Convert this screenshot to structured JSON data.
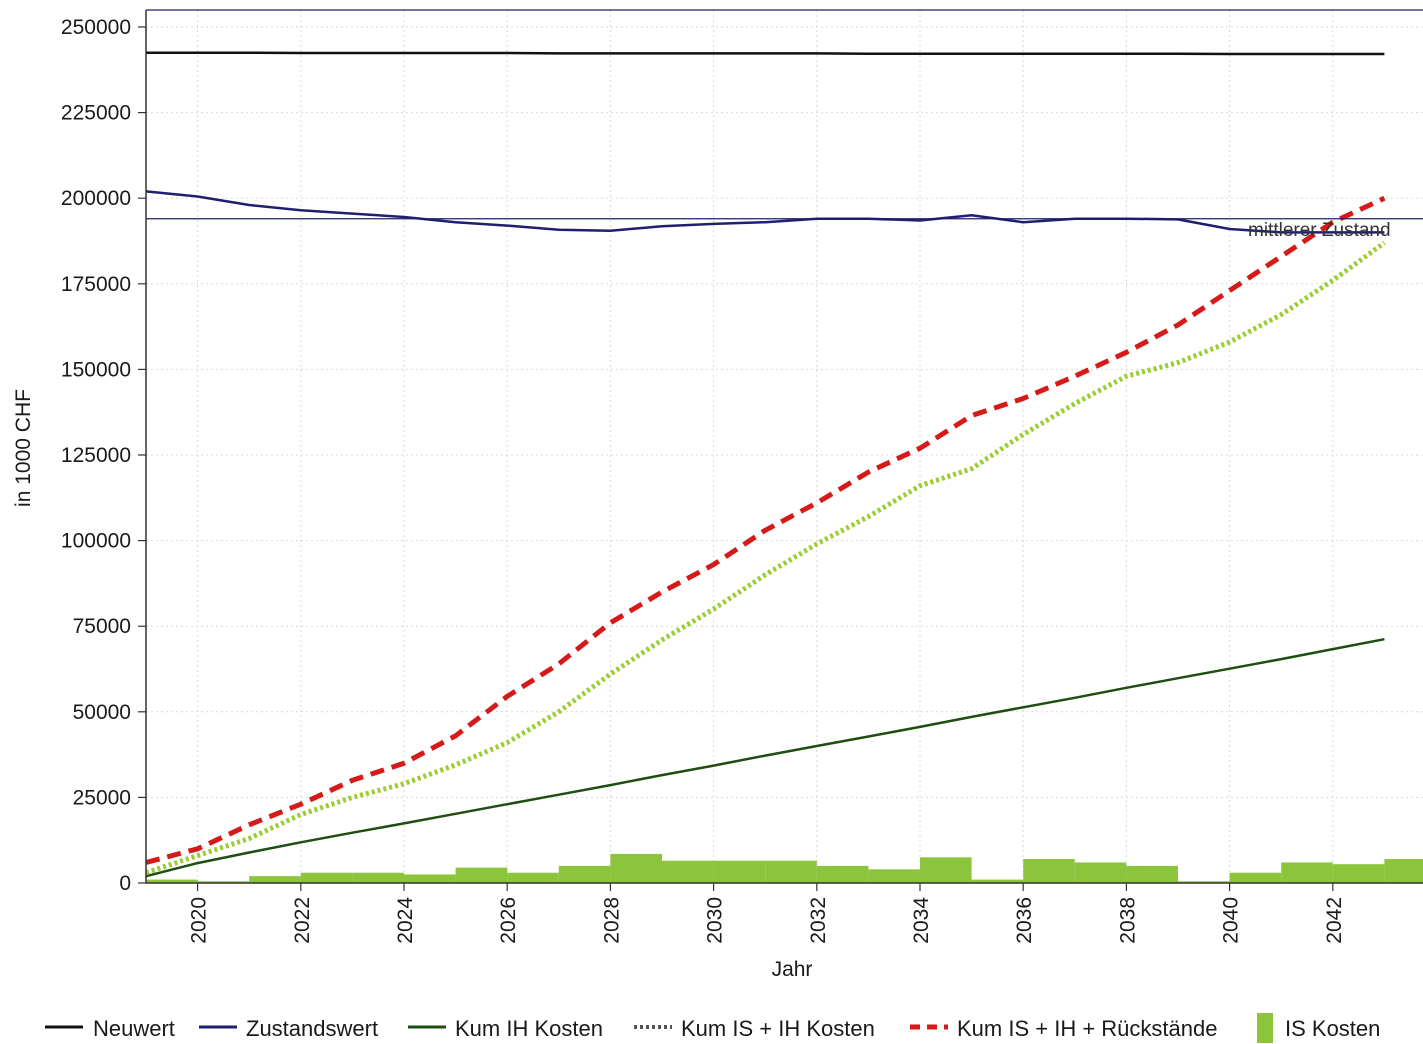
{
  "chart_data": {
    "type": "line",
    "title": "",
    "xlabel": "Jahr",
    "ylabel": "in 1000 CHF",
    "x_ticks": [
      "2020",
      "2022",
      "2024",
      "2026",
      "2028",
      "2030",
      "2032",
      "2034",
      "2036",
      "2038",
      "2040",
      "2042"
    ],
    "y_ticks": [
      "0",
      "25000",
      "50000",
      "75000",
      "100000",
      "125000",
      "150000",
      "175000",
      "200000",
      "225000",
      "250000"
    ],
    "xlim": [
      2019,
      2043.7
    ],
    "ylim": [
      0,
      255000
    ],
    "grid": true,
    "legend_position": "bottom",
    "x": [
      2019,
      2020,
      2021,
      2022,
      2023,
      2024,
      2025,
      2026,
      2027,
      2028,
      2029,
      2030,
      2031,
      2032,
      2033,
      2034,
      2035,
      2036,
      2037,
      2038,
      2039,
      2040,
      2041,
      2042,
      2043
    ],
    "series": [
      {
        "name": "Neuwert",
        "style": "solid",
        "color": "#111111",
        "values": [
          242500,
          242500,
          242500,
          242400,
          242400,
          242400,
          242400,
          242400,
          242300,
          242300,
          242300,
          242300,
          242300,
          242300,
          242200,
          242200,
          242200,
          242200,
          242200,
          242200,
          242200,
          242100,
          242100,
          242100,
          242100
        ]
      },
      {
        "name": "Zustandswert",
        "style": "solid",
        "color": "#1f1f6e",
        "values": [
          202000,
          200500,
          198000,
          196500,
          195500,
          194500,
          193000,
          192000,
          190800,
          190500,
          191800,
          192500,
          193000,
          194000,
          194000,
          193500,
          195000,
          193000,
          194000,
          194000,
          193800,
          191000,
          190000,
          190000,
          190000
        ]
      },
      {
        "name": "Kum IH Kosten",
        "style": "solid",
        "color": "#1f4d12",
        "values": [
          2000,
          5800,
          8900,
          11900,
          14700,
          17400,
          20200,
          23000,
          25800,
          28600,
          31500,
          34300,
          37200,
          40000,
          42800,
          45600,
          48500,
          51300,
          54100,
          57000,
          59800,
          62600,
          65400,
          68300,
          71200
        ]
      },
      {
        "name": "Kum IS + IH Kosten",
        "style": "dotted",
        "color": "#9acd32",
        "values": [
          3000,
          8000,
          13000,
          20000,
          25000,
          29000,
          34500,
          41000,
          50000,
          61000,
          71000,
          80000,
          90000,
          99000,
          107000,
          116000,
          121000,
          131000,
          140000,
          148000,
          152000,
          158000,
          166000,
          176000,
          187000
        ]
      },
      {
        "name": "Kum IS + IH + Rückstände",
        "style": "dashed",
        "color": "#d61a1a",
        "values": [
          6000,
          10000,
          17000,
          23000,
          30000,
          35000,
          43000,
          54500,
          64000,
          76000,
          85000,
          93000,
          103000,
          111000,
          120000,
          127000,
          136500,
          141500,
          148000,
          155000,
          163000,
          173000,
          183000,
          193000,
          200000
        ]
      },
      {
        "name": "IS Kosten",
        "type": "bar",
        "color": "#8cc43c",
        "values": [
          1000,
          500,
          2000,
          3000,
          3000,
          2500,
          4500,
          3000,
          5000,
          8500,
          6500,
          6500,
          6500,
          5000,
          4000,
          7500,
          1000,
          7000,
          6000,
          5000,
          500,
          3000,
          6000,
          5500,
          7000
        ]
      }
    ],
    "reference_line": {
      "label": "mittlerer Zustand",
      "value": 194000,
      "color": "#1f1f6e"
    }
  }
}
